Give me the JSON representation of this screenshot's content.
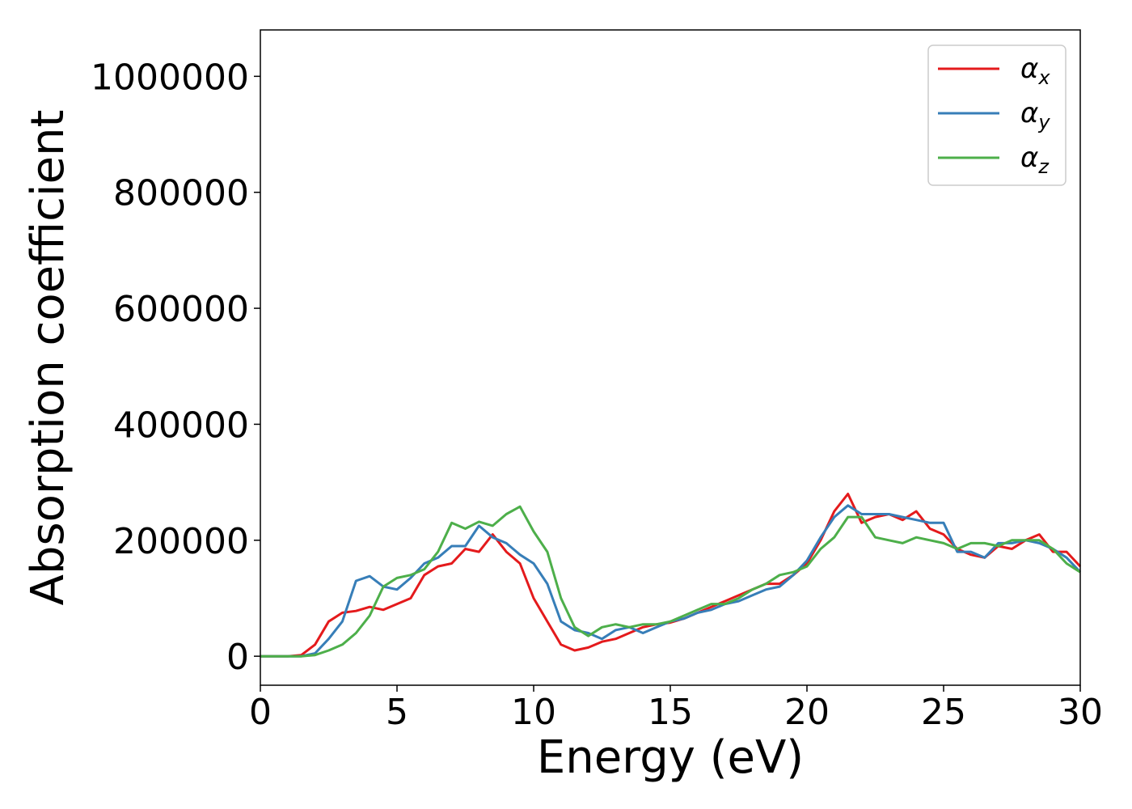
{
  "chart_data": {
    "type": "line",
    "title": "",
    "xlabel": "Energy (eV)",
    "ylabel": "Absorption coefficient",
    "xlim": [
      0,
      30
    ],
    "ylim": [
      -50000,
      1080000
    ],
    "xticks": [
      0,
      5,
      10,
      15,
      20,
      25,
      30
    ],
    "xtick_labels": [
      "0",
      "5",
      "10",
      "15",
      "20",
      "25",
      "30"
    ],
    "yticks": [
      0,
      200000,
      400000,
      600000,
      800000,
      1000000
    ],
    "ytick_labels": [
      "0",
      "200000",
      "400000",
      "600000",
      "800000",
      "1000000"
    ],
    "grid": false,
    "legend_position": "top-right",
    "x": [
      0,
      0.5,
      1,
      1.5,
      2,
      2.5,
      3,
      3.5,
      4,
      4.5,
      5,
      5.5,
      6,
      6.5,
      7,
      7.5,
      8,
      8.5,
      9,
      9.5,
      10,
      10.5,
      11,
      11.5,
      12,
      12.5,
      13,
      13.5,
      14,
      14.5,
      15,
      15.5,
      16,
      16.5,
      17,
      17.5,
      18,
      18.5,
      19,
      19.5,
      20,
      20.5,
      21,
      21.5,
      22,
      22.5,
      23,
      23.5,
      24,
      24.5,
      25,
      25.5,
      26,
      26.5,
      27,
      27.5,
      28,
      28.5,
      29,
      29.5,
      30
    ],
    "series": [
      {
        "name": "α_x",
        "name_base": "α",
        "name_sub": "x",
        "color": "#e41a1c",
        "values": [
          0,
          0,
          0,
          2000,
          20000,
          60000,
          75000,
          78000,
          85000,
          80000,
          90000,
          100000,
          140000,
          155000,
          160000,
          185000,
          180000,
          210000,
          180000,
          160000,
          100000,
          60000,
          20000,
          10000,
          15000,
          25000,
          30000,
          40000,
          50000,
          55000,
          58000,
          65000,
          75000,
          85000,
          95000,
          105000,
          115000,
          125000,
          125000,
          140000,
          160000,
          200000,
          250000,
          280000,
          230000,
          240000,
          245000,
          235000,
          250000,
          220000,
          210000,
          185000,
          175000,
          170000,
          190000,
          185000,
          200000,
          210000,
          180000,
          180000,
          155000
        ]
      },
      {
        "name": "α_y",
        "name_base": "α",
        "name_sub": "y",
        "color": "#377eb8",
        "values": [
          0,
          0,
          0,
          0,
          5000,
          30000,
          60000,
          130000,
          138000,
          120000,
          115000,
          135000,
          160000,
          170000,
          190000,
          190000,
          225000,
          205000,
          195000,
          175000,
          160000,
          125000,
          60000,
          45000,
          40000,
          30000,
          45000,
          50000,
          40000,
          50000,
          60000,
          65000,
          75000,
          80000,
          90000,
          95000,
          105000,
          115000,
          120000,
          140000,
          165000,
          205000,
          240000,
          260000,
          245000,
          245000,
          245000,
          240000,
          235000,
          230000,
          230000,
          180000,
          180000,
          170000,
          195000,
          195000,
          200000,
          195000,
          185000,
          170000,
          145000
        ]
      },
      {
        "name": "α_z",
        "name_base": "α",
        "name_sub": "z",
        "color": "#4daf4a",
        "values": [
          0,
          0,
          0,
          0,
          2000,
          10000,
          20000,
          40000,
          70000,
          120000,
          135000,
          140000,
          150000,
          180000,
          230000,
          220000,
          232000,
          225000,
          245000,
          258000,
          215000,
          180000,
          100000,
          50000,
          35000,
          50000,
          55000,
          50000,
          55000,
          55000,
          60000,
          70000,
          80000,
          90000,
          90000,
          100000,
          115000,
          125000,
          140000,
          145000,
          155000,
          185000,
          205000,
          240000,
          240000,
          205000,
          200000,
          195000,
          205000,
          200000,
          195000,
          185000,
          195000,
          195000,
          190000,
          200000,
          200000,
          200000,
          185000,
          160000,
          145000
        ]
      }
    ]
  }
}
